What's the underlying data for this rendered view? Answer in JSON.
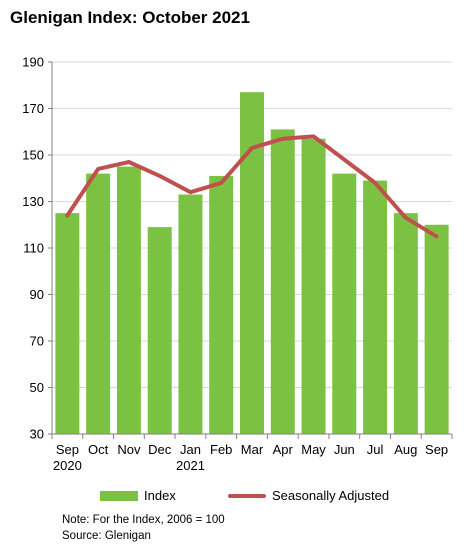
{
  "title": "Glenigan Index: October 2021",
  "colors": {
    "bar": "#7CC242",
    "line": "#C0504D",
    "grid": "#d9d9d9"
  },
  "chart_data": {
    "type": "bar",
    "categories": [
      "Sep",
      "Oct",
      "Nov",
      "Dec",
      "Jan",
      "Feb",
      "Mar",
      "Apr",
      "May",
      "Jun",
      "Jul",
      "Aug",
      "Sep"
    ],
    "category_sublabels": [
      "2020",
      "",
      "",
      "",
      "2021",
      "",
      "",
      "",
      "",
      "",
      "",
      "",
      ""
    ],
    "series": [
      {
        "name": "Index",
        "type": "bar",
        "values": [
          125,
          142,
          145,
          119,
          133,
          141,
          177,
          161,
          157,
          142,
          139,
          125,
          120
        ]
      },
      {
        "name": "Seasonally Adjusted",
        "type": "line",
        "values": [
          124,
          144,
          147,
          141,
          134,
          138,
          153,
          157,
          158,
          148,
          138,
          123,
          115
        ]
      }
    ],
    "ylim": [
      30,
      190
    ],
    "yticks": [
      "190",
      "170",
      "150",
      "130",
      "110",
      "90",
      "70",
      "50",
      "30"
    ],
    "ytick_values": [
      190,
      170,
      150,
      130,
      110,
      90,
      70,
      50,
      30
    ],
    "grid": true,
    "legend_position": "bottom"
  },
  "legend": {
    "bar_label": "Index",
    "line_label": "Seasonally Adjusted"
  },
  "notes": {
    "note": "Note: For the Index, 2006 = 100",
    "source": "Source: Glenigan"
  }
}
